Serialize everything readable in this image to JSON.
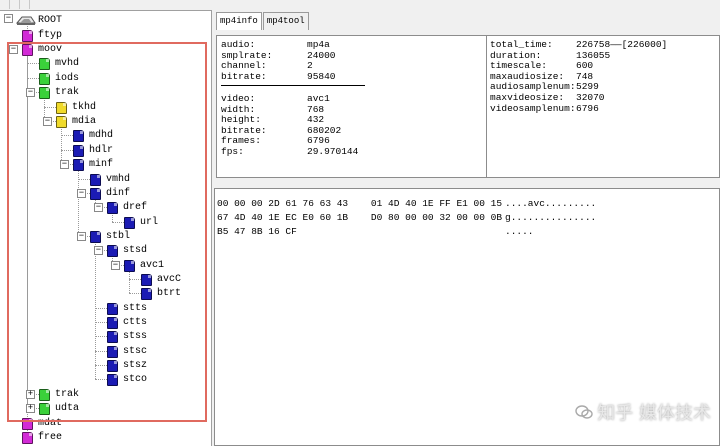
{
  "tree": {
    "root_label": "ROOT",
    "nodes": [
      {
        "id": "ftyp",
        "label": "ftyp",
        "color": "magenta"
      },
      {
        "id": "moov",
        "label": "moov",
        "color": "magenta"
      },
      {
        "id": "mvhd",
        "label": "mvhd",
        "color": "green"
      },
      {
        "id": "iods",
        "label": "iods",
        "color": "green"
      },
      {
        "id": "trak1",
        "label": "trak",
        "color": "green"
      },
      {
        "id": "tkhd",
        "label": "tkhd",
        "color": "yellow"
      },
      {
        "id": "mdia",
        "label": "mdia",
        "color": "yellow"
      },
      {
        "id": "mdhd",
        "label": "mdhd",
        "color": "blue"
      },
      {
        "id": "hdlr",
        "label": "hdlr",
        "color": "blue"
      },
      {
        "id": "minf",
        "label": "minf",
        "color": "blue"
      },
      {
        "id": "vmhd",
        "label": "vmhd",
        "color": "blue"
      },
      {
        "id": "dinf",
        "label": "dinf",
        "color": "blue"
      },
      {
        "id": "dref",
        "label": "dref",
        "color": "blue"
      },
      {
        "id": "url",
        "label": "url",
        "color": "blue"
      },
      {
        "id": "stbl",
        "label": "stbl",
        "color": "blue"
      },
      {
        "id": "stsd",
        "label": "stsd",
        "color": "blue"
      },
      {
        "id": "avc1",
        "label": "avc1",
        "color": "blue"
      },
      {
        "id": "avcC",
        "label": "avcC",
        "color": "blue"
      },
      {
        "id": "btrt",
        "label": "btrt",
        "color": "blue"
      },
      {
        "id": "stts",
        "label": "stts",
        "color": "blue"
      },
      {
        "id": "ctts",
        "label": "ctts",
        "color": "blue"
      },
      {
        "id": "stss",
        "label": "stss",
        "color": "blue"
      },
      {
        "id": "stsc",
        "label": "stsc",
        "color": "blue"
      },
      {
        "id": "stsz",
        "label": "stsz",
        "color": "blue"
      },
      {
        "id": "stco",
        "label": "stco",
        "color": "blue"
      },
      {
        "id": "trak2",
        "label": "trak",
        "color": "green"
      },
      {
        "id": "udta",
        "label": "udta",
        "color": "green"
      },
      {
        "id": "mdat",
        "label": "mdat",
        "color": "magenta"
      },
      {
        "id": "free",
        "label": "free",
        "color": "magenta"
      }
    ]
  },
  "colors": {
    "magenta": "#d22ad6",
    "green": "#3ad13a",
    "yellow": "#f0da2a",
    "blue": "#1b1bb4",
    "highlight": "#e06a5f"
  },
  "tabs": [
    {
      "label": "mp4info"
    },
    {
      "label": "mp4tool"
    }
  ],
  "info_left": {
    "audio": [
      {
        "key": "audio:",
        "value": "mp4a"
      },
      {
        "key": "smplrate:",
        "value": "24000"
      },
      {
        "key": "channel:",
        "value": "2"
      },
      {
        "key": "bitrate:",
        "value": "95840"
      }
    ],
    "video": [
      {
        "key": "video:",
        "value": "avc1"
      },
      {
        "key": "width:",
        "value": "768"
      },
      {
        "key": "height:",
        "value": "432"
      },
      {
        "key": "bitrate:",
        "value": "680202"
      },
      {
        "key": "frames:",
        "value": "6796"
      },
      {
        "key": "fps:",
        "value": "29.970144"
      }
    ]
  },
  "info_right": [
    {
      "key": "total_time:",
      "value": "226758——[226000]"
    },
    {
      "key": "duration:",
      "value": "136055"
    },
    {
      "key": "timescale:",
      "value": "600"
    },
    {
      "key": "maxaudiosize:",
      "value": "748"
    },
    {
      "key": "audiosamplenum:",
      "value": "5299"
    },
    {
      "key": "maxvideosize:",
      "value": "32070"
    },
    {
      "key": "videosamplenum:",
      "value": "6796"
    }
  ],
  "hex": [
    {
      "bytes": "00 00 00 2D 61 76 63 43    01 4D 40 1E FF E1 00 15",
      "ascii": "....avc........."
    },
    {
      "bytes": "67 4D 40 1E EC E0 60 1B    D0 80 00 00 32 00 00 0B",
      "ascii": "g..............."
    },
    {
      "bytes": "B5 47 8B 16 CF",
      "ascii": "....."
    }
  ],
  "watermark": {
    "text": "知乎 媒体技术"
  }
}
